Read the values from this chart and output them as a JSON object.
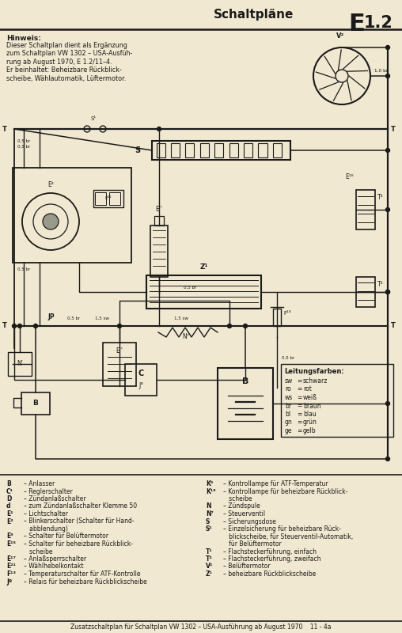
{
  "bg_color": "#f0e8d0",
  "title": "Schaltpläne",
  "title_code": "E1.2",
  "header_note_title": "Hinweis:",
  "header_note_body": "Dieser Schaltplan dient als Ergänzung\nzum Schaltplan VW 1302 – USA-Ausfüh-\nrung ab August 1970, E 1.2/11–4.\nEr beinhaltet: Beheizbare Rückblick-\nscheibe, Wählautomatik, Lüftermotor.",
  "legend_colors_title": "Leitungsfarben:",
  "legend_colors": [
    [
      "sw",
      "=",
      "schwarz"
    ],
    [
      "ro",
      "=",
      "rot"
    ],
    [
      "ws",
      "=",
      "weiß"
    ],
    [
      "br",
      "=",
      "braun"
    ],
    [
      "bl",
      "=",
      "blau"
    ],
    [
      "gn",
      "=",
      "grün"
    ],
    [
      "ge",
      "=",
      "gelb"
    ]
  ],
  "legend_left": [
    [
      "B",
      "– Anlasser"
    ],
    [
      "C¹",
      "– Reglerschalter"
    ],
    [
      "D",
      "– Zündanlaßschalter"
    ],
    [
      "d",
      "– zum Zündanlaßschalter Klemme 50"
    ],
    [
      "E¹",
      "– Lichtschalter"
    ],
    [
      "E²",
      "– Blinkerschalter (Schalter für Hand-"
    ],
    [
      "",
      "   abblendung)"
    ],
    [
      "E⁹",
      "– Schalter für Belüftermotor"
    ],
    [
      "E¹⁵",
      "– Schalter für beheizbare Rückblick-"
    ],
    [
      "",
      "   scheibe"
    ],
    [
      "E¹⁷",
      "– Anlaßsperrschalter"
    ],
    [
      "E²¹",
      "– Wählhebelkontakt"
    ],
    [
      "F¹³",
      "– Temperaturschalter für ATF-Kontrolle"
    ],
    [
      "Jº",
      "– Relais für beheizbare Rückblickscheibe"
    ]
  ],
  "legend_right": [
    [
      "K⁹",
      "– Kontrollampe für ATF-Temperatur"
    ],
    [
      "K¹⁰",
      "– Kontrollampe für beheizbare Rückblick-"
    ],
    [
      "",
      "   scheibe"
    ],
    [
      "N",
      "– Zündspule"
    ],
    [
      "N⁷",
      "– Steuerventil"
    ],
    [
      "S",
      "– Sicherungsdose"
    ],
    [
      "S¹",
      "– Einzelsicherung für beheizbare Rück-"
    ],
    [
      "",
      "   blickscheibe, für Steuerventil-Automatik,"
    ],
    [
      "",
      "   für Belüftermotor"
    ],
    [
      "T¹",
      "– Flachsteckerführung, einfach"
    ],
    [
      "T²",
      "– Flachsteckerführung, zweifach"
    ],
    [
      "V²",
      "– Belüftermotor"
    ],
    [
      "Z¹",
      "– beheizbare Rückblickscheibe"
    ]
  ],
  "footer": "Zusatzschaltplan für Schaltplan VW 1302 – USA-Ausführung ab August 1970    11 - 4a",
  "line_color": "#1a1a1a"
}
